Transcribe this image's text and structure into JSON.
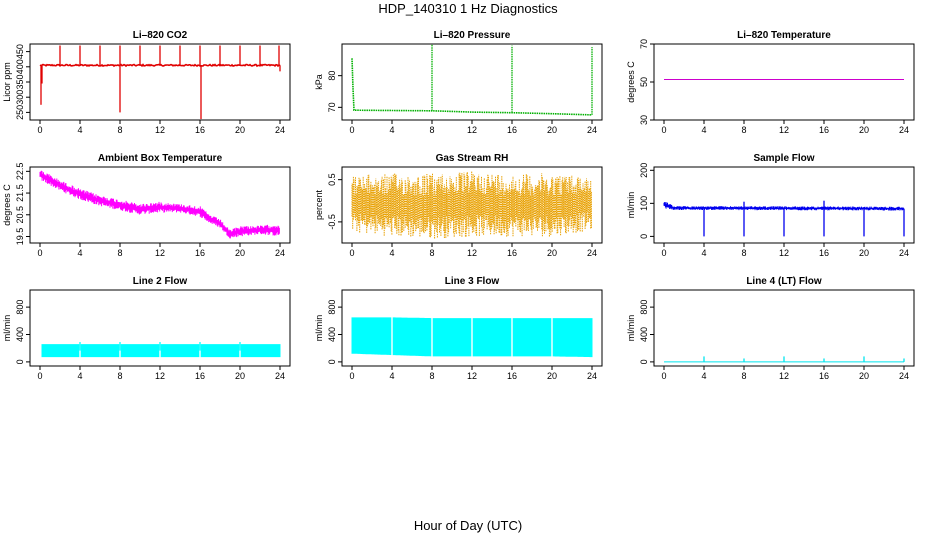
{
  "page": {
    "title": "HDP_140310  1 Hz Diagnostics",
    "xlabel": "Hour of Day (UTC)"
  },
  "chart_data": [
    {
      "type": "line",
      "title": "Li–820 CO2",
      "ylabel": "Licor ppm",
      "color": "#e00000",
      "xlim": [
        0,
        24
      ],
      "ylim": [
        225,
        475
      ],
      "yticks": [
        250,
        300,
        350,
        400,
        450
      ],
      "xticks": [
        0,
        4,
        8,
        12,
        16,
        20,
        24
      ],
      "baseline": 405,
      "noise": 5,
      "spikes": [
        {
          "x": 0.1,
          "y": 275
        },
        {
          "x": 0.2,
          "y": 345
        },
        {
          "x": 2.0,
          "y": 470
        },
        {
          "x": 4.0,
          "y": 470
        },
        {
          "x": 6.0,
          "y": 470
        },
        {
          "x": 8.0,
          "y": 470
        },
        {
          "x": 8.0,
          "y": 250
        },
        {
          "x": 10.0,
          "y": 470
        },
        {
          "x": 12.0,
          "y": 470
        },
        {
          "x": 14.0,
          "y": 470
        },
        {
          "x": 16.0,
          "y": 470
        },
        {
          "x": 16.1,
          "y": 228
        },
        {
          "x": 18.0,
          "y": 470
        },
        {
          "x": 20.0,
          "y": 470
        },
        {
          "x": 22.0,
          "y": 470
        },
        {
          "x": 23.9,
          "y": 470
        },
        {
          "x": 24.0,
          "y": 385
        }
      ]
    },
    {
      "type": "line",
      "title": "Li–820 Pressure",
      "ylabel": "kPa",
      "color": "#00b000",
      "dotted": true,
      "xlim": [
        0,
        24
      ],
      "ylim": [
        66,
        90
      ],
      "yticks": [
        70,
        80
      ],
      "xticks": [
        0,
        4,
        8,
        12,
        16,
        20,
        24
      ],
      "path": [
        [
          0,
          85.5
        ],
        [
          0.1,
          76
        ],
        [
          0.2,
          69.1
        ],
        [
          8,
          68.9
        ],
        [
          12,
          68.5
        ],
        [
          16,
          68.3
        ],
        [
          20,
          68.0
        ],
        [
          24,
          67.6
        ]
      ],
      "spikes": [
        {
          "x": 8.0,
          "y": 90
        },
        {
          "x": 16.0,
          "y": 89.5
        },
        {
          "x": 24.0,
          "y": 89
        }
      ]
    },
    {
      "type": "line",
      "title": "Li–820 Temperature",
      "ylabel": "degrees C",
      "color": "#cc00cc",
      "xlim": [
        0,
        24
      ],
      "ylim": [
        30,
        70
      ],
      "yticks": [
        30,
        50,
        70
      ],
      "xticks": [
        0,
        4,
        8,
        12,
        16,
        20,
        24
      ],
      "path": [
        [
          0,
          51.3
        ],
        [
          24,
          51.3
        ]
      ]
    },
    {
      "type": "line",
      "title": "Ambient Box Temperature",
      "ylabel": "degrees C",
      "color": "#ff00ff",
      "xlim": [
        0,
        24
      ],
      "ylim": [
        19.2,
        22.7
      ],
      "yticks": [
        19.5,
        20.5,
        21.5,
        22.5
      ],
      "xticks": [
        0,
        4,
        8,
        12,
        16,
        20,
        24
      ],
      "band": [
        [
          0,
          22.1,
          22.6
        ],
        [
          2,
          21.6,
          22.1
        ],
        [
          4,
          21.2,
          21.7
        ],
        [
          6,
          20.9,
          21.4
        ],
        [
          8,
          20.7,
          21.2
        ],
        [
          10,
          20.5,
          21.0
        ],
        [
          12,
          20.6,
          21.1
        ],
        [
          14,
          20.6,
          21.0
        ],
        [
          16,
          20.4,
          20.9
        ],
        [
          17,
          20.1,
          20.5
        ],
        [
          18,
          19.9,
          20.3
        ],
        [
          19,
          19.4,
          19.8
        ],
        [
          20,
          19.5,
          20.0
        ],
        [
          22,
          19.6,
          20.0
        ],
        [
          24,
          19.5,
          20.1
        ]
      ]
    },
    {
      "type": "line",
      "title": "Gas Stream RH",
      "ylabel": "percent",
      "color": "#e8a000",
      "dotted": true,
      "xlim": [
        0,
        24
      ],
      "ylim": [
        -1.0,
        0.8
      ],
      "yticks": [
        -0.5,
        0.5
      ],
      "xticks": [
        0,
        4,
        8,
        12,
        16,
        20,
        24
      ],
      "band": [
        [
          0,
          -0.75,
          0.6
        ],
        [
          4,
          -0.85,
          0.65
        ],
        [
          8,
          -0.9,
          0.65
        ],
        [
          12,
          -0.85,
          0.7
        ],
        [
          16,
          -0.85,
          0.65
        ],
        [
          20,
          -0.85,
          0.65
        ],
        [
          24,
          -0.7,
          0.6
        ]
      ]
    },
    {
      "type": "line",
      "title": "Sample Flow",
      "ylabel": "ml/min",
      "color": "#0000ee",
      "xlim": [
        0,
        24
      ],
      "ylim": [
        -20,
        210
      ],
      "yticks": [
        0,
        100,
        200
      ],
      "xticks": [
        0,
        4,
        8,
        12,
        16,
        20,
        24
      ],
      "band": [
        [
          0,
          85,
          108
        ],
        [
          1,
          80,
          92
        ],
        [
          24,
          78,
          90
        ]
      ],
      "spikes": [
        {
          "x": 4.0,
          "y": 0
        },
        {
          "x": 8.0,
          "y": 0
        },
        {
          "x": 8.0,
          "y": 105
        },
        {
          "x": 12.0,
          "y": 0
        },
        {
          "x": 16.0,
          "y": 0
        },
        {
          "x": 16.0,
          "y": 108
        },
        {
          "x": 20.0,
          "y": 0
        },
        {
          "x": 24.0,
          "y": 0
        }
      ]
    },
    {
      "type": "area",
      "title": "Line 2 Flow",
      "ylabel": "ml/min",
      "color": "#00ffff",
      "xlim": [
        0,
        24
      ],
      "ylim": [
        -60,
        1050
      ],
      "yticks": [
        0,
        400,
        800
      ],
      "xticks": [
        0,
        4,
        8,
        12,
        16,
        20,
        24
      ],
      "band": [
        [
          0.2,
          70,
          260
        ],
        [
          24,
          70,
          260
        ]
      ],
      "gaps": [
        4,
        8,
        12,
        16,
        20
      ],
      "spikes": [
        {
          "x": 4.0,
          "y": 290
        },
        {
          "x": 8.0,
          "y": 290
        },
        {
          "x": 12.0,
          "y": 290
        },
        {
          "x": 16.0,
          "y": 290
        },
        {
          "x": 20.0,
          "y": 290
        }
      ]
    },
    {
      "type": "area",
      "title": "Line 3 Flow",
      "ylabel": "ml/min",
      "color": "#00ffff",
      "xlim": [
        0,
        24
      ],
      "ylim": [
        -60,
        1050
      ],
      "yticks": [
        0,
        400,
        800
      ],
      "xticks": [
        0,
        4,
        8,
        12,
        16,
        20,
        24
      ],
      "band": [
        [
          0,
          120,
          650
        ],
        [
          4,
          100,
          650
        ],
        [
          8,
          80,
          640
        ],
        [
          12,
          80,
          640
        ],
        [
          16,
          80,
          640
        ],
        [
          20,
          80,
          640
        ],
        [
          24,
          70,
          640
        ]
      ],
      "gaps": [
        4,
        8,
        12,
        16,
        20
      ]
    },
    {
      "type": "line",
      "title": "Line 4 (LT) Flow",
      "ylabel": "ml/min",
      "color": "#00e5ee",
      "xlim": [
        0,
        24
      ],
      "ylim": [
        -60,
        1050
      ],
      "yticks": [
        0,
        400,
        800
      ],
      "xticks": [
        0,
        4,
        8,
        12,
        16,
        20,
        24
      ],
      "path": [
        [
          0,
          0
        ],
        [
          24,
          0
        ]
      ],
      "spikes": [
        {
          "x": 4.0,
          "y": 80
        },
        {
          "x": 8.0,
          "y": 50
        },
        {
          "x": 12.0,
          "y": 80
        },
        {
          "x": 16.0,
          "y": 50
        },
        {
          "x": 20.0,
          "y": 80
        },
        {
          "x": 24.0,
          "y": 50
        }
      ]
    }
  ]
}
